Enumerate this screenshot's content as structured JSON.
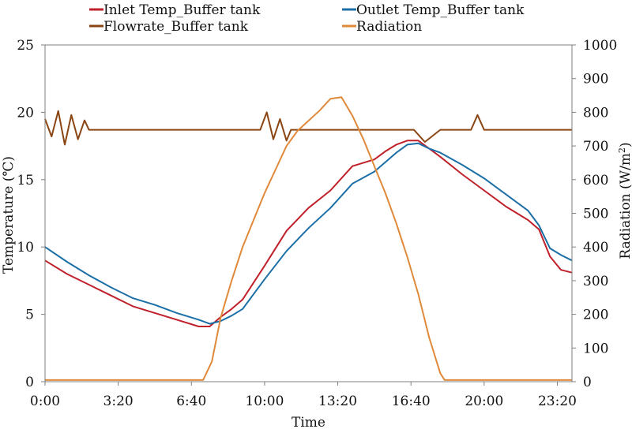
{
  "chart_data": {
    "type": "line",
    "title": "",
    "xlabel": "Time",
    "ylabel_left": "Temperature (℃)",
    "ylabel_right_prefix": "Radiation (W/m",
    "ylabel_right_sup": "2",
    "ylabel_right_suffix": ")",
    "x_unit": "hours",
    "xlim": [
      0,
      24
    ],
    "ylim_left": [
      0,
      25
    ],
    "ylim_right": [
      0,
      1000
    ],
    "x_ticks": [
      {
        "value": 0,
        "label": "0:00"
      },
      {
        "value": 3.333,
        "label": "3:20"
      },
      {
        "value": 6.667,
        "label": "6:40"
      },
      {
        "value": 10,
        "label": "10:00"
      },
      {
        "value": 13.333,
        "label": "13:20"
      },
      {
        "value": 16.667,
        "label": "16:40"
      },
      {
        "value": 20,
        "label": "20:00"
      },
      {
        "value": 23.333,
        "label": "23:20"
      }
    ],
    "y_ticks_left": [
      {
        "value": 0,
        "label": "0"
      },
      {
        "value": 5,
        "label": "5"
      },
      {
        "value": 10,
        "label": "10"
      },
      {
        "value": 15,
        "label": "15"
      },
      {
        "value": 20,
        "label": "20"
      },
      {
        "value": 25,
        "label": "25"
      }
    ],
    "y_ticks_right": [
      {
        "value": 0,
        "label": "0"
      },
      {
        "value": 100,
        "label": "100"
      },
      {
        "value": 200,
        "label": "200"
      },
      {
        "value": 300,
        "label": "300"
      },
      {
        "value": 400,
        "label": "400"
      },
      {
        "value": 500,
        "label": "500"
      },
      {
        "value": 600,
        "label": "600"
      },
      {
        "value": 700,
        "label": "700"
      },
      {
        "value": 800,
        "label": "800"
      },
      {
        "value": 900,
        "label": "900"
      },
      {
        "value": 1000,
        "label": "1000"
      }
    ],
    "legend_position": "top",
    "grid": false,
    "series": [
      {
        "name": "Inlet Temp_Buffer tank",
        "axis": "left",
        "color": "#c0202a",
        "x": [
          0,
          1,
          2,
          3,
          4,
          5,
          6,
          7,
          7.5,
          8,
          8.5,
          9,
          10,
          11,
          12,
          13,
          14,
          15,
          15.5,
          16,
          16.5,
          17,
          17.5,
          18,
          19,
          20,
          21,
          22,
          22.5,
          23,
          23.5,
          24
        ],
        "y": [
          9.0,
          8.0,
          7.2,
          6.4,
          5.6,
          5.1,
          4.6,
          4.1,
          4.1,
          4.8,
          5.4,
          6.1,
          8.6,
          11.2,
          12.9,
          14.2,
          16.0,
          16.5,
          17.1,
          17.6,
          17.9,
          17.9,
          17.3,
          16.7,
          15.4,
          14.2,
          13.0,
          12.0,
          11.3,
          9.3,
          8.3,
          8.1
        ]
      },
      {
        "name": "Outlet Temp_Buffer tank",
        "axis": "left",
        "color": "#1b6fa6",
        "x": [
          0,
          1,
          2,
          3,
          4,
          5,
          6,
          7,
          7.5,
          8,
          8.5,
          9,
          10,
          11,
          12,
          13,
          14,
          15,
          16,
          16.5,
          17,
          17.5,
          18,
          19,
          20,
          21,
          22,
          22.5,
          23,
          23.5,
          24
        ],
        "y": [
          10.0,
          8.9,
          7.9,
          7.0,
          6.2,
          5.7,
          5.1,
          4.6,
          4.3,
          4.5,
          4.9,
          5.4,
          7.6,
          9.7,
          11.4,
          12.9,
          14.7,
          15.6,
          17.0,
          17.6,
          17.7,
          17.3,
          17.0,
          16.1,
          15.1,
          13.9,
          12.7,
          11.6,
          9.9,
          9.4,
          9.0
        ]
      },
      {
        "name": "Flowrate_Buffer tank",
        "axis": "left",
        "color": "#8b4513",
        "x": [
          0,
          0.3,
          0.6,
          0.9,
          1.2,
          1.5,
          1.8,
          2.0,
          2.5,
          5.5,
          6.5,
          7.5,
          9.8,
          10.1,
          10.4,
          10.7,
          11.0,
          11.2,
          12.0,
          13.0,
          15.0,
          16.8,
          17.3,
          18.0,
          19.4,
          19.7,
          20.0,
          21.0,
          22.0,
          24
        ],
        "y": [
          19.5,
          18.2,
          20.1,
          17.6,
          19.8,
          18.0,
          19.4,
          18.7,
          18.7,
          18.7,
          18.7,
          18.7,
          18.7,
          20.0,
          18.0,
          19.5,
          17.9,
          18.7,
          18.7,
          18.7,
          18.7,
          18.7,
          17.8,
          18.7,
          18.7,
          19.8,
          18.7,
          18.7,
          18.7,
          18.7
        ]
      },
      {
        "name": "Radiation",
        "axis": "right",
        "color": "#e0893a",
        "x": [
          0,
          6.5,
          7.2,
          7.6,
          8.0,
          8.5,
          9.0,
          9.5,
          10.0,
          10.5,
          11.0,
          11.5,
          12.0,
          12.5,
          13.0,
          13.5,
          14.0,
          14.5,
          15.0,
          15.5,
          16.0,
          16.5,
          17.0,
          17.5,
          18.0,
          18.2,
          18.5,
          24
        ],
        "y": [
          5,
          5,
          5,
          60,
          190,
          300,
          400,
          480,
          560,
          630,
          700,
          745,
          775,
          805,
          840,
          845,
          790,
          720,
          640,
          560,
          470,
          370,
          260,
          130,
          25,
          5,
          5,
          5
        ]
      }
    ]
  }
}
